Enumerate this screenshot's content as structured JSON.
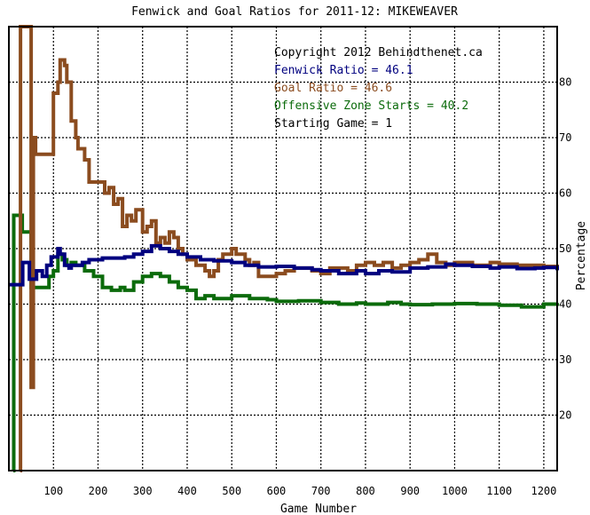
{
  "chart_data": {
    "type": "line",
    "title": "Fenwick and Goal Ratios for 2011-12: MIKEWEAVER",
    "xlabel": "Game Number",
    "ylabel": "Percentage",
    "xlim": [
      0,
      1230
    ],
    "ylim": [
      10,
      90
    ],
    "x_ticks": [
      100,
      200,
      300,
      400,
      500,
      600,
      700,
      800,
      900,
      1000,
      1100,
      1200
    ],
    "y_ticks": [
      20,
      30,
      40,
      50,
      60,
      70,
      80
    ],
    "grid": true,
    "legend_position": "top-right",
    "annotations": {
      "copyright": "Copyright 2012 Behindthenet.ca",
      "fenwick": "Fenwick Ratio = 46.1",
      "goal": "Goal Ratio = 46.6",
      "ozone": "Offensive Zone Starts = 40.2",
      "starting_game": "Starting Game = 1"
    },
    "colors": {
      "fenwick": "#00007f",
      "goal": "#8b4c1f",
      "ozone": "#0b6b0b",
      "grid": "#000000",
      "frame": "#000000"
    },
    "series": [
      {
        "name": "Fenwick Ratio",
        "color": "#00007f",
        "x": [
          0,
          5,
          6,
          30,
          31,
          45,
          46,
          60,
          62,
          75,
          85,
          95,
          110,
          115,
          125,
          135,
          140,
          155,
          165,
          180,
          210,
          260,
          280,
          300,
          320,
          340,
          360,
          380,
          400,
          430,
          460,
          500,
          530,
          560,
          600,
          640,
          680,
          700,
          740,
          780,
          800,
          830,
          860,
          900,
          940,
          980,
          1000,
          1040,
          1080,
          1100,
          1140,
          1180,
          1200,
          1230
        ],
        "y": [
          43.5,
          43.5,
          43.5,
          43.5,
          47.5,
          47.5,
          44.5,
          44.5,
          46,
          45,
          47,
          48.5,
          50,
          49,
          47,
          46.5,
          47,
          47,
          47.5,
          48,
          48.3,
          48.5,
          49,
          49.5,
          50.5,
          50,
          49.5,
          49,
          48.5,
          48,
          47.8,
          47.5,
          47,
          46.7,
          46.8,
          46.5,
          46.2,
          46,
          45.5,
          46,
          45.5,
          46,
          45.8,
          46.5,
          46.7,
          47.2,
          47,
          46.8,
          46.5,
          46.7,
          46.4,
          46.5,
          46.6,
          46.1
        ]
      },
      {
        "name": "Goal Ratio",
        "color": "#8b4c1f",
        "x": [
          25,
          26,
          45,
          50,
          55,
          60,
          95,
          100,
          110,
          115,
          125,
          130,
          140,
          150,
          155,
          170,
          180,
          215,
          225,
          235,
          245,
          255,
          265,
          275,
          285,
          300,
          310,
          320,
          330,
          340,
          350,
          360,
          370,
          380,
          390,
          400,
          420,
          440,
          450,
          460,
          470,
          480,
          500,
          510,
          530,
          540,
          550,
          560,
          600,
          620,
          640,
          680,
          700,
          720,
          760,
          780,
          800,
          820,
          840,
          860,
          880,
          900,
          920,
          940,
          960,
          980,
          1000,
          1040,
          1080,
          1100,
          1140,
          1200,
          1230
        ],
        "y": [
          0,
          100,
          100,
          25,
          70,
          67,
          67,
          78,
          80,
          84,
          83,
          80,
          73,
          70,
          68,
          66,
          62,
          60,
          61,
          58,
          59,
          54,
          56,
          55,
          57,
          53,
          54,
          55,
          51,
          52,
          51,
          53,
          52,
          50,
          49,
          48,
          47,
          46,
          45,
          46,
          48,
          49,
          50,
          49,
          48,
          47,
          47.5,
          45,
          45.5,
          46,
          46.5,
          46,
          45.5,
          46.5,
          46,
          47,
          47.5,
          47,
          47.5,
          46.5,
          47,
          47.5,
          48,
          49,
          47.5,
          47,
          47.5,
          47,
          47.5,
          47.2,
          47,
          46.8,
          46.6
        ]
      },
      {
        "name": "Offensive Zone Starts",
        "color": "#0b6b0b",
        "x": [
          10,
          11,
          25,
          30,
          45,
          50,
          60,
          80,
          90,
          100,
          110,
          120,
          130,
          140,
          150,
          170,
          190,
          200,
          210,
          230,
          250,
          260,
          280,
          300,
          320,
          340,
          360,
          380,
          400,
          420,
          440,
          460,
          500,
          540,
          580,
          600,
          650,
          700,
          740,
          780,
          800,
          850,
          880,
          900,
          950,
          1000,
          1050,
          1100,
          1150,
          1200,
          1230
        ],
        "y": [
          0,
          56,
          56,
          53,
          53,
          43,
          43,
          43,
          45,
          46,
          49,
          48,
          47,
          47.5,
          47,
          46,
          45,
          45,
          43,
          42.5,
          43,
          42.5,
          44,
          45,
          45.5,
          45,
          44,
          43,
          42.5,
          41,
          41.5,
          41,
          41.5,
          41,
          40.8,
          40.5,
          40.6,
          40.3,
          40,
          40.2,
          40,
          40.3,
          40,
          39.9,
          40,
          40.1,
          40,
          39.8,
          39.5,
          40,
          40.2
        ]
      }
    ]
  }
}
